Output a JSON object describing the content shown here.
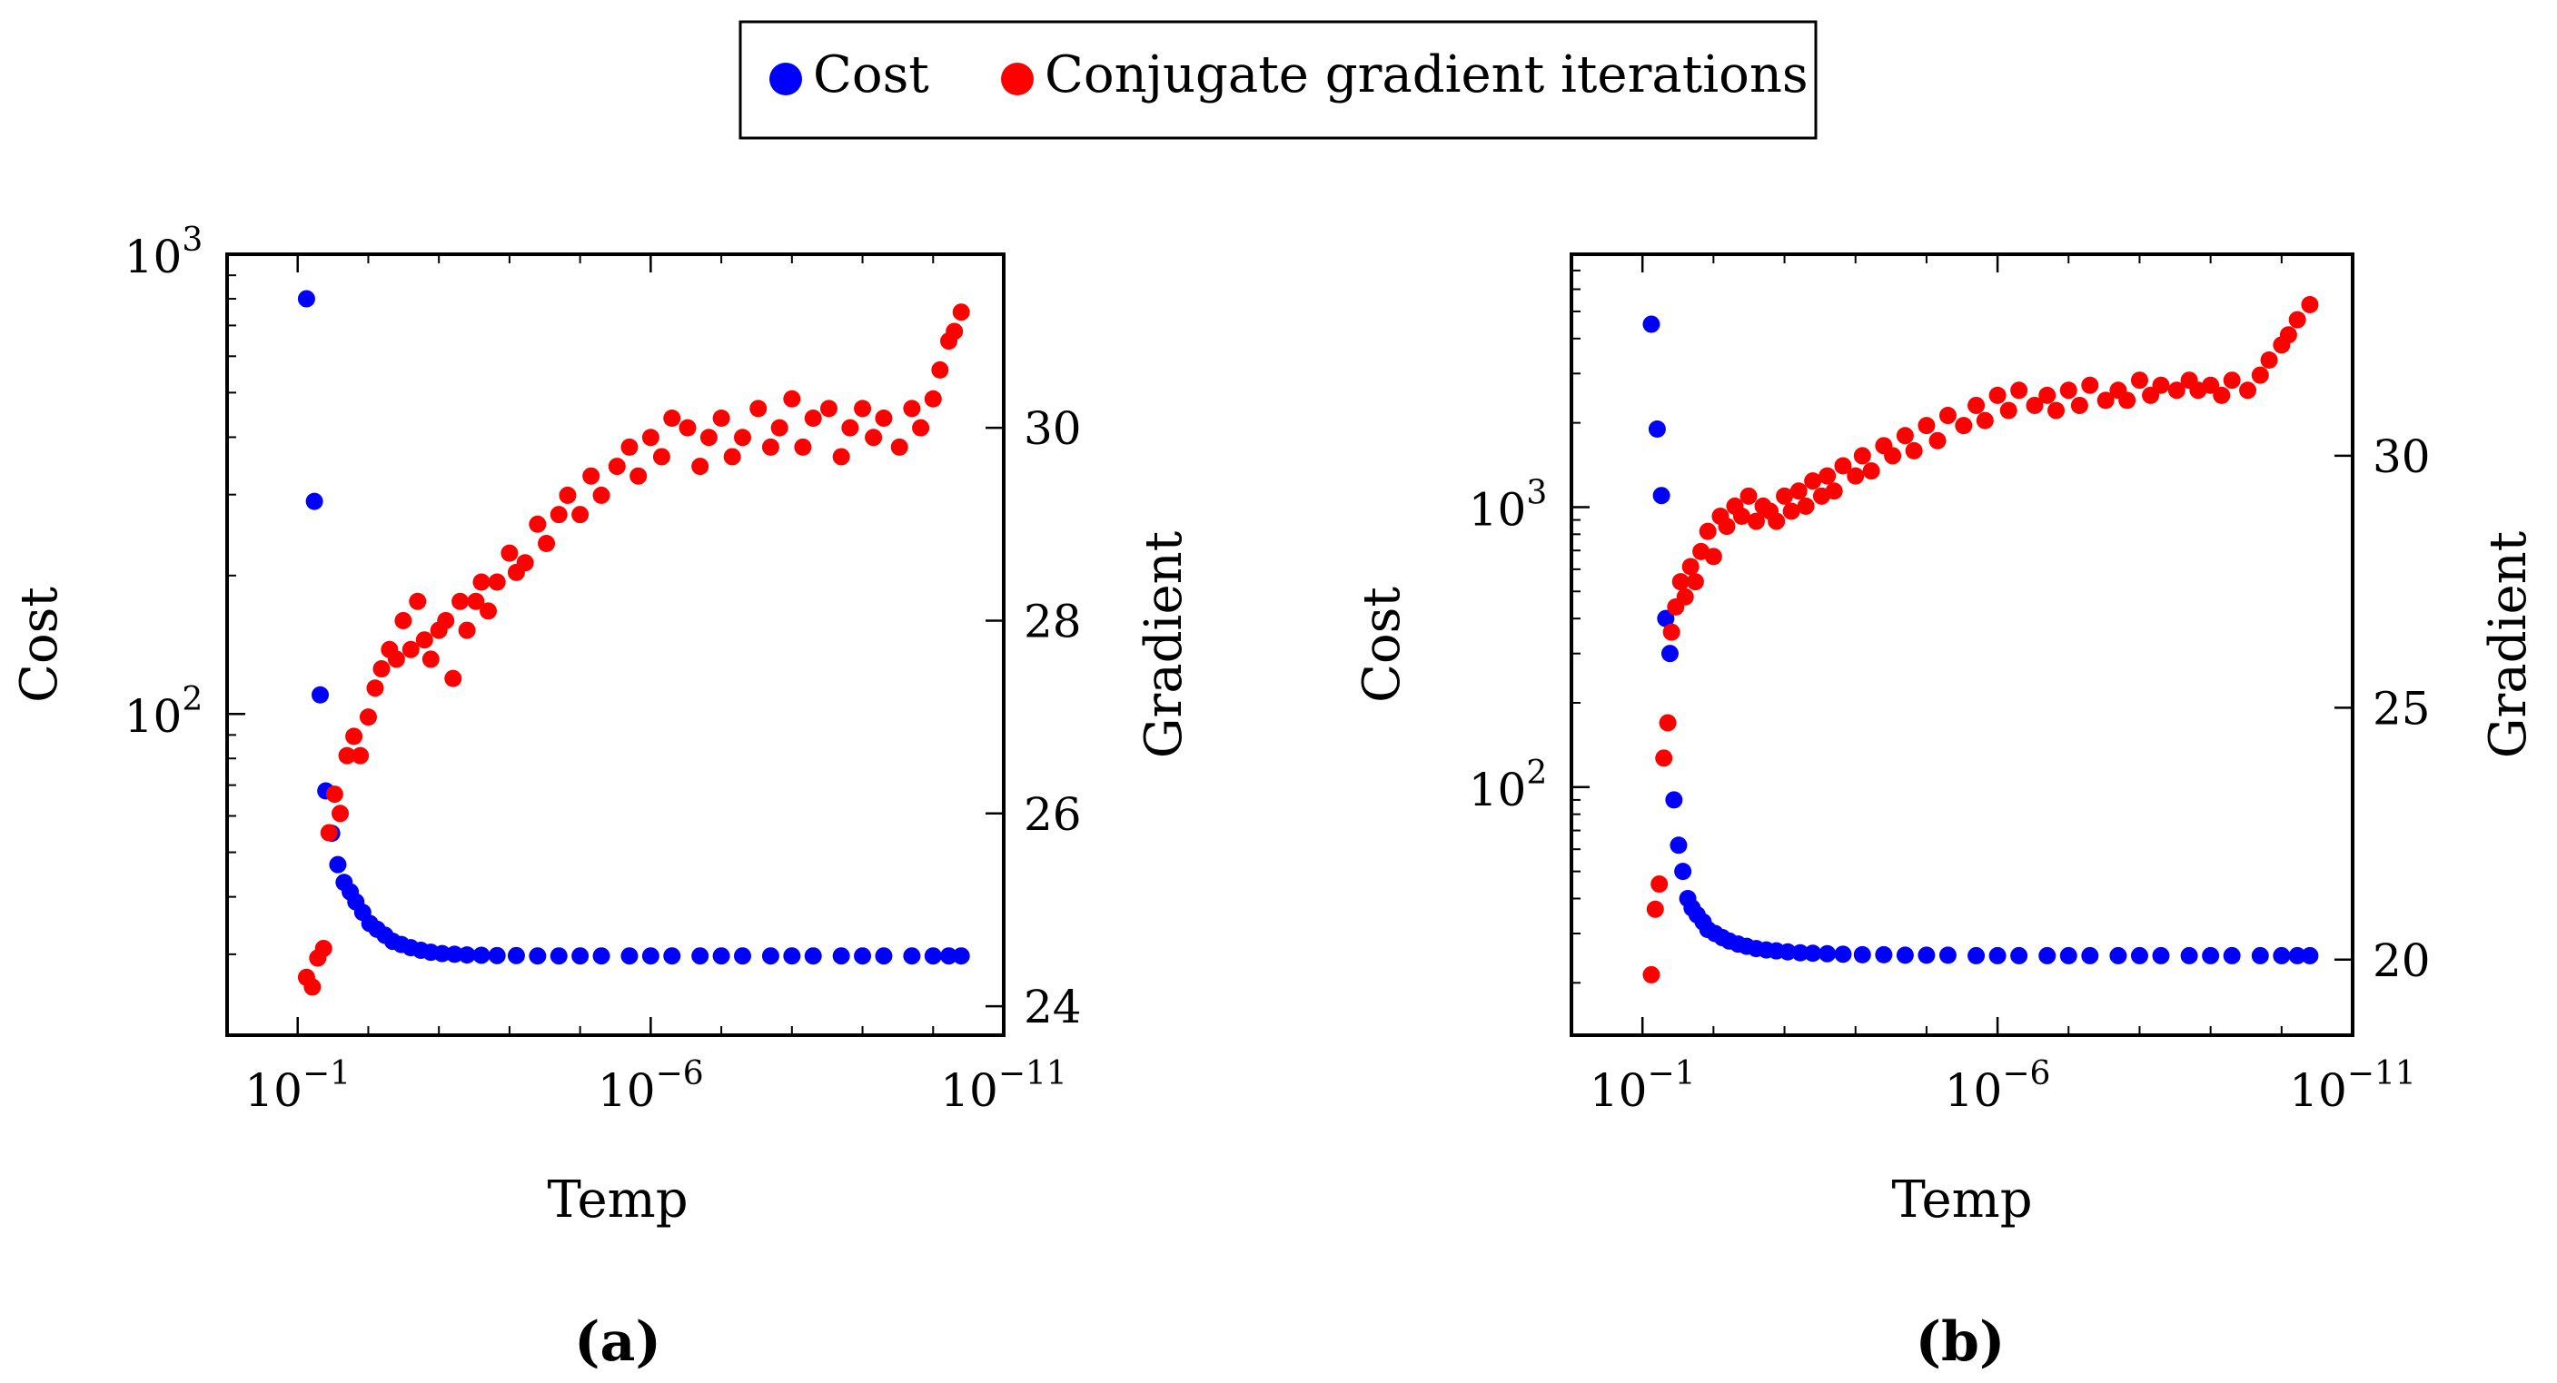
{
  "legend": {
    "entries": [
      {
        "label": "Cost",
        "color": "#0000ff"
      },
      {
        "label": "Conjugate gradient iterations",
        "color": "#ff0000"
      }
    ]
  },
  "panels": [
    {
      "label": "(a)"
    },
    {
      "label": "(b)"
    }
  ],
  "chart_data": [
    {
      "type": "scatter",
      "panel": "(a)",
      "xlabel": "Temp",
      "ylabel": "Cost",
      "y2label": "Gradient",
      "xscale": "log-reversed",
      "yscale": "log",
      "xlim": [
        1,
        1e-11
      ],
      "ylim": [
        20,
        1000
      ],
      "y2lim": [
        23.7,
        31.8
      ],
      "x_ticks": [
        {
          "value": 0.1,
          "base": "10",
          "exp": "−1"
        },
        {
          "value": 1e-06,
          "base": "10",
          "exp": "−6"
        },
        {
          "value": 1e-11,
          "base": "10",
          "exp": "−11"
        }
      ],
      "y_ticks": [
        {
          "value": 100,
          "base": "10",
          "exp": "2"
        },
        {
          "value": 1000,
          "base": "10",
          "exp": "3"
        }
      ],
      "y2_ticks": [
        "24",
        "26",
        "28",
        "30"
      ],
      "cost_points": [
        [
          0.075,
          800
        ],
        [
          0.058,
          290
        ],
        [
          0.048,
          110
        ],
        [
          0.04,
          68
        ],
        [
          0.033,
          55
        ],
        [
          0.027,
          47
        ],
        [
          0.022,
          43
        ],
        [
          0.018,
          41
        ],
        [
          0.015,
          39
        ],
        [
          0.012,
          37
        ],
        [
          0.0095,
          35
        ],
        [
          0.0075,
          34
        ],
        [
          0.0058,
          33
        ],
        [
          0.0045,
          32
        ],
        [
          0.0034,
          31.5
        ],
        [
          0.0025,
          31
        ],
        [
          0.0018,
          30.6
        ],
        [
          0.0013,
          30.3
        ],
        [
          0.0009,
          30.1
        ],
        [
          0.0006,
          30.0
        ],
        [
          0.0004,
          29.9
        ],
        [
          0.00025,
          29.85
        ],
        [
          0.00015,
          29.8
        ],
        [
          8e-05,
          29.8
        ],
        [
          4e-05,
          29.75
        ],
        [
          2e-05,
          29.75
        ],
        [
          1e-05,
          29.75
        ],
        [
          5e-06,
          29.75
        ],
        [
          2e-06,
          29.75
        ],
        [
          1e-06,
          29.75
        ],
        [
          5e-07,
          29.75
        ],
        [
          2e-07,
          29.75
        ],
        [
          1e-07,
          29.75
        ],
        [
          5e-08,
          29.75
        ],
        [
          2e-08,
          29.75
        ],
        [
          1e-08,
          29.75
        ],
        [
          5e-09,
          29.75
        ],
        [
          2e-09,
          29.75
        ],
        [
          1e-09,
          29.75
        ],
        [
          5e-10,
          29.75
        ],
        [
          2e-10,
          29.75
        ],
        [
          1e-10,
          29.75
        ],
        [
          6e-11,
          29.75
        ],
        [
          4e-11,
          29.75
        ]
      ],
      "gradient_points": [
        [
          0.075,
          24.3
        ],
        [
          0.062,
          24.2
        ],
        [
          0.052,
          24.5
        ],
        [
          0.043,
          24.6
        ],
        [
          0.036,
          25.8
        ],
        [
          0.03,
          26.2
        ],
        [
          0.025,
          26.0
        ],
        [
          0.02,
          26.6
        ],
        [
          0.016,
          26.8
        ],
        [
          0.013,
          26.6
        ],
        [
          0.01,
          27.0
        ],
        [
          0.008,
          27.3
        ],
        [
          0.0065,
          27.5
        ],
        [
          0.005,
          27.7
        ],
        [
          0.004,
          27.6
        ],
        [
          0.0032,
          28.0
        ],
        [
          0.0025,
          27.7
        ],
        [
          0.002,
          28.2
        ],
        [
          0.0016,
          27.8
        ],
        [
          0.0013,
          27.6
        ],
        [
          0.001,
          27.9
        ],
        [
          0.0008,
          28.0
        ],
        [
          0.00063,
          27.4
        ],
        [
          0.0005,
          28.2
        ],
        [
          0.0004,
          27.9
        ],
        [
          0.0003,
          28.2
        ],
        [
          0.00025,
          28.4
        ],
        [
          0.0002,
          28.1
        ],
        [
          0.00015,
          28.4
        ],
        [
          0.0001,
          28.7
        ],
        [
          8e-05,
          28.5
        ],
        [
          6e-05,
          28.6
        ],
        [
          4e-05,
          29.0
        ],
        [
          3e-05,
          28.8
        ],
        [
          2e-05,
          29.1
        ],
        [
          1.5e-05,
          29.3
        ],
        [
          1e-05,
          29.1
        ],
        [
          7e-06,
          29.5
        ],
        [
          5e-06,
          29.3
        ],
        [
          3e-06,
          29.6
        ],
        [
          2e-06,
          29.8
        ],
        [
          1.5e-06,
          29.5
        ],
        [
          1e-06,
          29.9
        ],
        [
          7e-07,
          29.7
        ],
        [
          5e-07,
          30.1
        ],
        [
          3e-07,
          30.0
        ],
        [
          2e-07,
          29.6
        ],
        [
          1.5e-07,
          29.9
        ],
        [
          1e-07,
          30.1
        ],
        [
          7e-08,
          29.7
        ],
        [
          5e-08,
          29.9
        ],
        [
          3e-08,
          30.2
        ],
        [
          2e-08,
          29.8
        ],
        [
          1.5e-08,
          30.0
        ],
        [
          1e-08,
          30.3
        ],
        [
          7e-09,
          29.8
        ],
        [
          5e-09,
          30.1
        ],
        [
          3e-09,
          30.2
        ],
        [
          2e-09,
          29.7
        ],
        [
          1.5e-09,
          30.0
        ],
        [
          1e-09,
          30.2
        ],
        [
          7e-10,
          29.9
        ],
        [
          5e-10,
          30.1
        ],
        [
          3e-10,
          29.8
        ],
        [
          2e-10,
          30.2
        ],
        [
          1.5e-10,
          30.0
        ],
        [
          1e-10,
          30.3
        ],
        [
          8e-11,
          30.6
        ],
        [
          6e-11,
          30.9
        ],
        [
          5e-11,
          31.0
        ],
        [
          4e-11,
          31.2
        ]
      ]
    },
    {
      "type": "scatter",
      "panel": "(b)",
      "xlabel": "Temp",
      "ylabel": "Cost",
      "y2label": "Gradient",
      "xscale": "log-reversed",
      "yscale": "log",
      "xlim": [
        1,
        1e-11
      ],
      "ylim": [
        13,
        8000
      ],
      "y2lim": [
        18.5,
        34.0
      ],
      "x_ticks": [
        {
          "value": 0.1,
          "base": "10",
          "exp": "−1"
        },
        {
          "value": 1e-06,
          "base": "10",
          "exp": "−6"
        },
        {
          "value": 1e-11,
          "base": "10",
          "exp": "−11"
        }
      ],
      "y_ticks": [
        {
          "value": 100,
          "base": "10",
          "exp": "2"
        },
        {
          "value": 1000,
          "base": "10",
          "exp": "3"
        }
      ],
      "y2_ticks": [
        "20",
        "25",
        "30"
      ],
      "cost_points": [
        [
          0.075,
          4500
        ],
        [
          0.062,
          1900
        ],
        [
          0.054,
          1100
        ],
        [
          0.047,
          400
        ],
        [
          0.041,
          300
        ],
        [
          0.036,
          90
        ],
        [
          0.031,
          62
        ],
        [
          0.027,
          50
        ],
        [
          0.023,
          40
        ],
        [
          0.02,
          37
        ],
        [
          0.017,
          35
        ],
        [
          0.014,
          33
        ],
        [
          0.012,
          31
        ],
        [
          0.0095,
          30
        ],
        [
          0.0075,
          29
        ],
        [
          0.006,
          28.2
        ],
        [
          0.0045,
          27.5
        ],
        [
          0.0034,
          27
        ],
        [
          0.0025,
          26.5
        ],
        [
          0.0018,
          26.2
        ],
        [
          0.0013,
          26
        ],
        [
          0.0009,
          25.8
        ],
        [
          0.0006,
          25.6
        ],
        [
          0.0004,
          25.5
        ],
        [
          0.00025,
          25.4
        ],
        [
          0.00015,
          25.3
        ],
        [
          8e-05,
          25.2
        ],
        [
          4e-05,
          25.2
        ],
        [
          2e-05,
          25.1
        ],
        [
          1e-05,
          25.1
        ],
        [
          5e-06,
          25.1
        ],
        [
          2e-06,
          25.0
        ],
        [
          1e-06,
          25.0
        ],
        [
          5e-07,
          25.0
        ],
        [
          2e-07,
          25.0
        ],
        [
          1e-07,
          25.0
        ],
        [
          5e-08,
          25.0
        ],
        [
          2e-08,
          25.0
        ],
        [
          1e-08,
          25.0
        ],
        [
          5e-09,
          25.0
        ],
        [
          2e-09,
          25.0
        ],
        [
          1e-09,
          25.0
        ],
        [
          5e-10,
          25.0
        ],
        [
          2e-10,
          25.0
        ],
        [
          1e-10,
          25.0
        ],
        [
          6e-11,
          25.0
        ],
        [
          4e-11,
          25.0
        ]
      ],
      "gradient_points": [
        [
          0.075,
          19.7
        ],
        [
          0.066,
          21.0
        ],
        [
          0.058,
          21.5
        ],
        [
          0.05,
          24.0
        ],
        [
          0.044,
          24.7
        ],
        [
          0.039,
          26.5
        ],
        [
          0.034,
          27.0
        ],
        [
          0.029,
          27.5
        ],
        [
          0.025,
          27.2
        ],
        [
          0.021,
          27.8
        ],
        [
          0.018,
          27.5
        ],
        [
          0.015,
          28.1
        ],
        [
          0.012,
          28.5
        ],
        [
          0.01,
          28.0
        ],
        [
          0.008,
          28.8
        ],
        [
          0.0065,
          28.6
        ],
        [
          0.005,
          29.0
        ],
        [
          0.004,
          28.8
        ],
        [
          0.0032,
          29.2
        ],
        [
          0.0025,
          28.7
        ],
        [
          0.002,
          29.0
        ],
        [
          0.0016,
          28.9
        ],
        [
          0.0013,
          28.7
        ],
        [
          0.001,
          29.2
        ],
        [
          0.0008,
          28.9
        ],
        [
          0.00063,
          29.3
        ],
        [
          0.0005,
          29.0
        ],
        [
          0.0004,
          29.5
        ],
        [
          0.0003,
          29.2
        ],
        [
          0.00025,
          29.6
        ],
        [
          0.0002,
          29.3
        ],
        [
          0.00015,
          29.8
        ],
        [
          0.0001,
          29.6
        ],
        [
          8e-05,
          30.0
        ],
        [
          6e-05,
          29.7
        ],
        [
          4e-05,
          30.2
        ],
        [
          3e-05,
          30.0
        ],
        [
          2e-05,
          30.4
        ],
        [
          1.5e-05,
          30.1
        ],
        [
          1e-05,
          30.6
        ],
        [
          7e-06,
          30.3
        ],
        [
          5e-06,
          30.8
        ],
        [
          3e-06,
          30.6
        ],
        [
          2e-06,
          31.0
        ],
        [
          1.5e-06,
          30.7
        ],
        [
          1e-06,
          31.2
        ],
        [
          7e-07,
          30.9
        ],
        [
          5e-07,
          31.3
        ],
        [
          3e-07,
          31.0
        ],
        [
          2e-07,
          31.2
        ],
        [
          1.5e-07,
          30.9
        ],
        [
          1e-07,
          31.3
        ],
        [
          7e-08,
          31.0
        ],
        [
          5e-08,
          31.4
        ],
        [
          3e-08,
          31.1
        ],
        [
          2e-08,
          31.3
        ],
        [
          1.5e-08,
          31.1
        ],
        [
          1e-08,
          31.5
        ],
        [
          7e-09,
          31.2
        ],
        [
          5e-09,
          31.4
        ],
        [
          3e-09,
          31.3
        ],
        [
          2e-09,
          31.5
        ],
        [
          1.5e-09,
          31.3
        ],
        [
          1e-09,
          31.4
        ],
        [
          7e-10,
          31.2
        ],
        [
          5e-10,
          31.5
        ],
        [
          3e-10,
          31.3
        ],
        [
          2e-10,
          31.6
        ],
        [
          1.5e-10,
          31.9
        ],
        [
          1e-10,
          32.2
        ],
        [
          8e-11,
          32.4
        ],
        [
          6e-11,
          32.7
        ],
        [
          4e-11,
          33.0
        ]
      ]
    }
  ]
}
